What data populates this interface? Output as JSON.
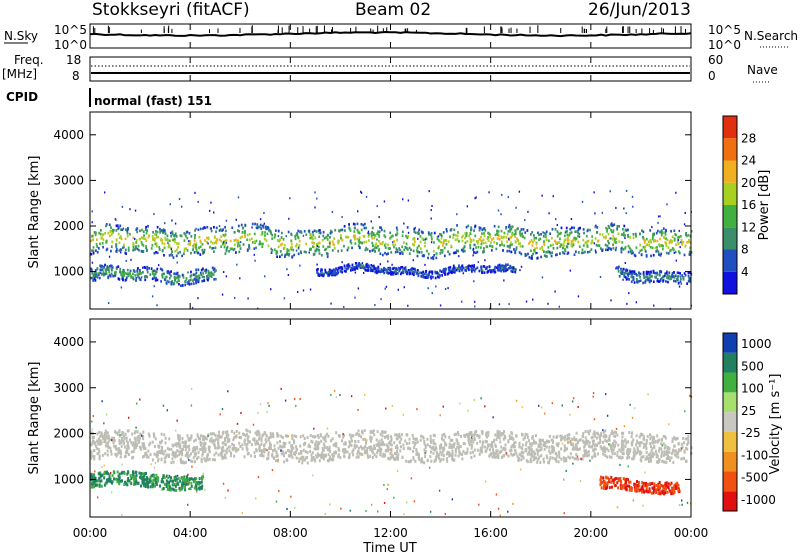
{
  "header": {
    "station": "Stokkseyri (fitACF)",
    "beam": "Beam 02",
    "date": "26/Jun/2013"
  },
  "noise_panel": {
    "left_label": "N.Sky",
    "right_label": "N.Search",
    "left_ticks": [
      "10^5",
      "10^0"
    ],
    "right_ticks": [
      "10^5",
      "10^0"
    ]
  },
  "freq_panel": {
    "left_label_1": "Freq.",
    "left_label_2": "[MHz]",
    "right_label": "Nave",
    "left_ticks": [
      "18",
      "8"
    ],
    "right_ticks": [
      "60",
      "0"
    ]
  },
  "cpid": {
    "label": "CPID",
    "value": "normal (fast) 151"
  },
  "time_axis": {
    "label": "Time UT",
    "ticks": [
      "00:00",
      "04:00",
      "08:00",
      "12:00",
      "16:00",
      "20:00",
      "00:00"
    ]
  },
  "colors": {
    "power_scale": [
      "#1010e0",
      "#2050c0",
      "#3a8f6a",
      "#40b040",
      "#a8d020",
      "#f0b020",
      "#f07010",
      "#e03010"
    ],
    "velocity_scale": [
      "#e01010",
      "#f05010",
      "#f09020",
      "#f0c040",
      "#c8c8c0",
      "#a8e070",
      "#40b040",
      "#208060",
      "#1040b0"
    ],
    "ground_scatter": "#bdbdb5"
  },
  "chart_data": [
    {
      "type": "line",
      "title": "",
      "xlabel": "",
      "ylabel": "N.Sky",
      "ylim": [
        "10^0",
        "10^5"
      ],
      "description_series": [
        {
          "name": "N.Sky",
          "values_pattern": "noise floor near top of range all day with frequent spikes"
        }
      ]
    },
    {
      "type": "line",
      "ylabel": "Freq. [MHz]",
      "ylim": [
        8,
        18
      ],
      "y2label": "Nave",
      "y2lim": [
        0,
        60
      ],
      "series": [
        {
          "name": "Freq.",
          "x": [
            0,
            24
          ],
          "values": [
            10,
            10
          ]
        },
        {
          "name": "Nave",
          "x": [
            0,
            24
          ],
          "values": [
            5,
            5
          ]
        }
      ]
    },
    {
      "type": "heatmap",
      "ylabel": "Slant Range [km]",
      "xlabel": "Time UT",
      "x_range_hours": [
        0,
        24
      ],
      "ylim": [
        180,
        4500
      ],
      "yticks": [
        1000,
        2000,
        3000,
        4000
      ],
      "colorbar": {
        "label": "Power [dB]",
        "ticks": [
          4,
          8,
          12,
          16,
          20,
          24,
          28
        ],
        "range": [
          0,
          32
        ]
      },
      "regions": [
        {
          "label": "main band",
          "x_start": 0,
          "x_end": 24,
          "range_center_km": 1700,
          "range_width_km": 600,
          "power_db": 16
        },
        {
          "label": "near range",
          "x_start": 0,
          "x_end": 5,
          "range_center_km": 950,
          "range_width_km": 300,
          "power_db": 10
        },
        {
          "label": "mid band",
          "x_start": 9,
          "x_end": 17,
          "range_center_km": 1050,
          "range_width_km": 150,
          "power_db": 6
        },
        {
          "label": "late near",
          "x_start": 21,
          "x_end": 24,
          "range_center_km": 950,
          "range_width_km": 250,
          "power_db": 8
        }
      ]
    },
    {
      "type": "heatmap",
      "ylabel": "Slant Range [km]",
      "xlabel": "Time UT",
      "x_range_hours": [
        0,
        24
      ],
      "ylim": [
        180,
        4500
      ],
      "yticks": [
        1000,
        2000,
        3000,
        4000
      ],
      "colorbar": {
        "label": "Velocity [m s-1]",
        "ticks": [
          1000,
          500,
          100,
          25,
          -25,
          -100,
          -500,
          -1000
        ]
      },
      "regions": [
        {
          "label": "ground scatter",
          "x_start": 0,
          "x_end": 24,
          "range_center_km": 1750,
          "range_width_km": 600,
          "velocity": 0
        },
        {
          "label": "green patch",
          "x_start": 0,
          "x_end": 4.5,
          "range_center_km": 1000,
          "range_width_km": 300,
          "velocity": 300
        },
        {
          "label": "orange patch",
          "x_start": 20.3,
          "x_end": 23.5,
          "range_center_km": 900,
          "range_width_km": 250,
          "velocity": -400
        }
      ]
    }
  ]
}
